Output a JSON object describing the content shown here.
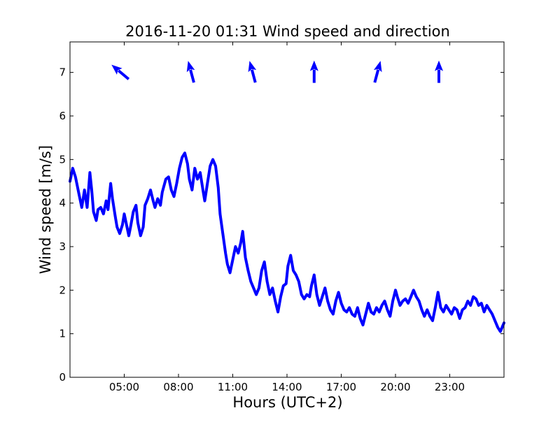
{
  "chart_data": {
    "type": "line",
    "title": "2016-11-20 01:31 Wind speed and direction",
    "xlabel": "Hours (UTC+2)",
    "ylabel": "Wind speed [m/s]",
    "xlim": [
      2.0,
      26.0
    ],
    "ylim": [
      0,
      7.7
    ],
    "grid": false,
    "x_ticks": [
      {
        "value": 5,
        "label": "05:00"
      },
      {
        "value": 8,
        "label": "08:00"
      },
      {
        "value": 11,
        "label": "11:00"
      },
      {
        "value": 14,
        "label": "14:00"
      },
      {
        "value": 17,
        "label": "17:00"
      },
      {
        "value": 20,
        "label": "20:00"
      },
      {
        "value": 23,
        "label": "23:00"
      }
    ],
    "y_ticks": [
      {
        "value": 0,
        "label": "0"
      },
      {
        "value": 1,
        "label": "1"
      },
      {
        "value": 2,
        "label": "2"
      },
      {
        "value": 3,
        "label": "3"
      },
      {
        "value": 4,
        "label": "4"
      },
      {
        "value": 5,
        "label": "5"
      },
      {
        "value": 6,
        "label": "6"
      },
      {
        "value": 7,
        "label": "7"
      }
    ],
    "series": [
      {
        "name": "",
        "color": "#0000ff",
        "points": [
          [
            2.0,
            4.5
          ],
          [
            2.15,
            4.8
          ],
          [
            2.3,
            4.6
          ],
          [
            2.5,
            4.2
          ],
          [
            2.65,
            3.9
          ],
          [
            2.8,
            4.3
          ],
          [
            2.95,
            3.9
          ],
          [
            3.1,
            4.7
          ],
          [
            3.2,
            4.3
          ],
          [
            3.3,
            3.8
          ],
          [
            3.45,
            3.6
          ],
          [
            3.55,
            3.85
          ],
          [
            3.7,
            3.9
          ],
          [
            3.85,
            3.75
          ],
          [
            4.0,
            4.05
          ],
          [
            4.1,
            3.85
          ],
          [
            4.25,
            4.45
          ],
          [
            4.35,
            4.1
          ],
          [
            4.5,
            3.7
          ],
          [
            4.6,
            3.45
          ],
          [
            4.75,
            3.3
          ],
          [
            4.9,
            3.5
          ],
          [
            5.0,
            3.75
          ],
          [
            5.1,
            3.55
          ],
          [
            5.25,
            3.25
          ],
          [
            5.35,
            3.45
          ],
          [
            5.5,
            3.8
          ],
          [
            5.65,
            3.95
          ],
          [
            5.75,
            3.55
          ],
          [
            5.9,
            3.25
          ],
          [
            6.05,
            3.45
          ],
          [
            6.15,
            3.95
          ],
          [
            6.3,
            4.1
          ],
          [
            6.45,
            4.3
          ],
          [
            6.6,
            4.05
          ],
          [
            6.7,
            3.9
          ],
          [
            6.85,
            4.1
          ],
          [
            7.0,
            3.95
          ],
          [
            7.1,
            4.25
          ],
          [
            7.3,
            4.55
          ],
          [
            7.45,
            4.6
          ],
          [
            7.6,
            4.3
          ],
          [
            7.75,
            4.15
          ],
          [
            7.9,
            4.45
          ],
          [
            8.05,
            4.8
          ],
          [
            8.2,
            5.05
          ],
          [
            8.35,
            5.15
          ],
          [
            8.5,
            4.9
          ],
          [
            8.6,
            4.55
          ],
          [
            8.75,
            4.3
          ],
          [
            8.9,
            4.8
          ],
          [
            9.05,
            4.55
          ],
          [
            9.2,
            4.7
          ],
          [
            9.35,
            4.3
          ],
          [
            9.45,
            4.05
          ],
          [
            9.6,
            4.45
          ],
          [
            9.75,
            4.85
          ],
          [
            9.9,
            5.0
          ],
          [
            10.05,
            4.85
          ],
          [
            10.2,
            4.35
          ],
          [
            10.3,
            3.75
          ],
          [
            10.45,
            3.3
          ],
          [
            10.6,
            2.85
          ],
          [
            10.7,
            2.6
          ],
          [
            10.85,
            2.4
          ],
          [
            11.0,
            2.7
          ],
          [
            11.15,
            3.0
          ],
          [
            11.3,
            2.85
          ],
          [
            11.45,
            3.1
          ],
          [
            11.55,
            3.35
          ],
          [
            11.7,
            2.75
          ],
          [
            11.85,
            2.45
          ],
          [
            12.0,
            2.2
          ],
          [
            12.15,
            2.05
          ],
          [
            12.3,
            1.9
          ],
          [
            12.45,
            2.05
          ],
          [
            12.6,
            2.45
          ],
          [
            12.75,
            2.65
          ],
          [
            12.9,
            2.2
          ],
          [
            13.05,
            1.9
          ],
          [
            13.2,
            2.05
          ],
          [
            13.35,
            1.75
          ],
          [
            13.5,
            1.5
          ],
          [
            13.65,
            1.85
          ],
          [
            13.8,
            2.1
          ],
          [
            13.95,
            2.15
          ],
          [
            14.05,
            2.55
          ],
          [
            14.2,
            2.8
          ],
          [
            14.35,
            2.45
          ],
          [
            14.5,
            2.35
          ],
          [
            14.65,
            2.2
          ],
          [
            14.8,
            1.9
          ],
          [
            14.95,
            1.8
          ],
          [
            15.1,
            1.9
          ],
          [
            15.25,
            1.85
          ],
          [
            15.35,
            2.1
          ],
          [
            15.5,
            2.35
          ],
          [
            15.65,
            1.9
          ],
          [
            15.8,
            1.65
          ],
          [
            15.95,
            1.85
          ],
          [
            16.1,
            2.05
          ],
          [
            16.25,
            1.75
          ],
          [
            16.4,
            1.55
          ],
          [
            16.55,
            1.45
          ],
          [
            16.7,
            1.75
          ],
          [
            16.85,
            1.95
          ],
          [
            17.0,
            1.7
          ],
          [
            17.15,
            1.55
          ],
          [
            17.3,
            1.5
          ],
          [
            17.45,
            1.6
          ],
          [
            17.6,
            1.45
          ],
          [
            17.75,
            1.4
          ],
          [
            17.9,
            1.6
          ],
          [
            18.05,
            1.35
          ],
          [
            18.2,
            1.2
          ],
          [
            18.35,
            1.45
          ],
          [
            18.5,
            1.7
          ],
          [
            18.65,
            1.5
          ],
          [
            18.8,
            1.45
          ],
          [
            18.95,
            1.6
          ],
          [
            19.1,
            1.5
          ],
          [
            19.25,
            1.65
          ],
          [
            19.4,
            1.75
          ],
          [
            19.55,
            1.55
          ],
          [
            19.7,
            1.4
          ],
          [
            19.85,
            1.75
          ],
          [
            20.0,
            2.0
          ],
          [
            20.1,
            1.85
          ],
          [
            20.25,
            1.65
          ],
          [
            20.4,
            1.75
          ],
          [
            20.55,
            1.8
          ],
          [
            20.7,
            1.7
          ],
          [
            20.85,
            1.85
          ],
          [
            21.0,
            2.0
          ],
          [
            21.15,
            1.85
          ],
          [
            21.3,
            1.75
          ],
          [
            21.45,
            1.55
          ],
          [
            21.6,
            1.4
          ],
          [
            21.75,
            1.55
          ],
          [
            21.9,
            1.4
          ],
          [
            22.05,
            1.3
          ],
          [
            22.2,
            1.6
          ],
          [
            22.35,
            1.95
          ],
          [
            22.5,
            1.6
          ],
          [
            22.65,
            1.5
          ],
          [
            22.8,
            1.65
          ],
          [
            22.95,
            1.55
          ],
          [
            23.1,
            1.45
          ],
          [
            23.25,
            1.6
          ],
          [
            23.4,
            1.55
          ],
          [
            23.55,
            1.35
          ],
          [
            23.7,
            1.55
          ],
          [
            23.85,
            1.6
          ],
          [
            24.0,
            1.75
          ],
          [
            24.15,
            1.65
          ],
          [
            24.3,
            1.85
          ],
          [
            24.45,
            1.8
          ],
          [
            24.6,
            1.65
          ],
          [
            24.75,
            1.7
          ],
          [
            24.9,
            1.5
          ],
          [
            25.05,
            1.65
          ],
          [
            25.2,
            1.55
          ],
          [
            25.35,
            1.45
          ],
          [
            25.5,
            1.3
          ],
          [
            25.65,
            1.15
          ],
          [
            25.8,
            1.05
          ],
          [
            25.9,
            1.15
          ],
          [
            26.0,
            1.25
          ]
        ]
      }
    ],
    "direction_arrows": {
      "color": "#0000ff",
      "y": 7.0,
      "items": [
        {
          "x": 4.8,
          "angle_deg": -50
        },
        {
          "x": 8.7,
          "angle_deg": -15
        },
        {
          "x": 12.1,
          "angle_deg": -15
        },
        {
          "x": 15.5,
          "angle_deg": 0
        },
        {
          "x": 19.0,
          "angle_deg": 15
        },
        {
          "x": 22.4,
          "angle_deg": 0
        }
      ]
    }
  }
}
